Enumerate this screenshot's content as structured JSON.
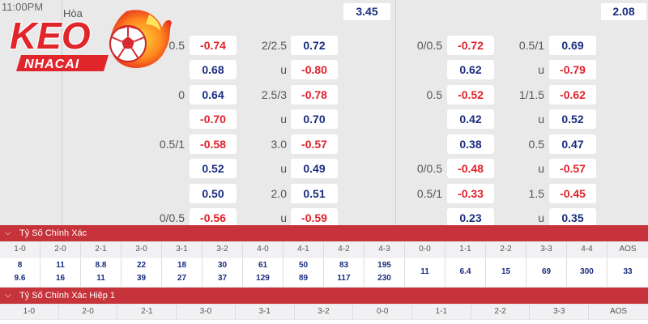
{
  "match": {
    "time": "11:00PM",
    "draw_label": "Hòa",
    "draw_odds_left": "3.45",
    "draw_odds_right": "2.08"
  },
  "logo": {
    "text_top": "KEO",
    "text_bottom": "NHACAI"
  },
  "handicap_left": [
    {
      "label": "0.5",
      "top": "-0.74",
      "bottom": "0.68"
    },
    {
      "label": "0",
      "top": "0.64",
      "bottom": "-0.70"
    },
    {
      "label": "0.5/1",
      "top": "-0.58",
      "bottom": "0.52"
    },
    {
      "label": "0/0.5",
      "top": "0.50",
      "bottom": "-0.56"
    }
  ],
  "overunder_left": [
    {
      "line": "2/2.5",
      "u": "u",
      "top": "0.72",
      "bottom": "-0.80"
    },
    {
      "line": "2.5/3",
      "u": "u",
      "top": "-0.78",
      "bottom": "0.70"
    },
    {
      "line": "3.0",
      "u": "u",
      "top": "-0.57",
      "bottom": "0.49"
    },
    {
      "line": "2.0",
      "u": "u",
      "top": "0.51",
      "bottom": "-0.59"
    }
  ],
  "handicap_right": [
    {
      "label": "0/0.5",
      "top": "-0.72",
      "bottom": "0.62"
    },
    {
      "label": "0.5",
      "top": "-0.52",
      "bottom": "0.42"
    },
    {
      "label": "0/0.5",
      "top": "0.38",
      "bottom": "-0.48"
    },
    {
      "label": "0.5/1",
      "top": "-0.33",
      "bottom": "0.23"
    }
  ],
  "overunder_right": [
    {
      "line": "0.5/1",
      "u": "u",
      "top": "0.69",
      "bottom": "-0.79"
    },
    {
      "line": "1/1.5",
      "u": "u",
      "top": "-0.62",
      "bottom": "0.52"
    },
    {
      "line": "0.5",
      "u": "u",
      "top": "0.47",
      "bottom": "-0.57"
    },
    {
      "line": "1.5",
      "u": "u",
      "top": "-0.45",
      "bottom": "0.35"
    }
  ],
  "correct_score": {
    "title": "Tỷ Số Chính Xác",
    "headers": [
      "1-0",
      "2-0",
      "2-1",
      "3-0",
      "3-1",
      "3-2",
      "4-0",
      "4-1",
      "4-2",
      "4-3",
      "0-0",
      "1-1",
      "2-2",
      "3-3",
      "4-4",
      "AOS"
    ],
    "values": [
      [
        "8",
        "9.6"
      ],
      [
        "11",
        "16"
      ],
      [
        "8.8",
        "11"
      ],
      [
        "22",
        "39"
      ],
      [
        "18",
        "27"
      ],
      [
        "30",
        "37"
      ],
      [
        "61",
        "129"
      ],
      [
        "50",
        "89"
      ],
      [
        "83",
        "117"
      ],
      [
        "195",
        "230"
      ],
      [
        "11"
      ],
      [
        "6.4"
      ],
      [
        "15"
      ],
      [
        "69"
      ],
      [
        "300"
      ],
      [
        "33"
      ]
    ]
  },
  "correct_score_h1": {
    "title": "Tỷ Số Chính Xác Hiệp 1",
    "headers": [
      "1-0",
      "2-0",
      "2-1",
      "3-0",
      "3-1",
      "3-2",
      "0-0",
      "1-1",
      "2-2",
      "3-3",
      "AOS"
    ]
  },
  "colors": {
    "positive": "#1b2d7e",
    "negative": "#e0222b",
    "header_red": "#c6333a",
    "logo_red": "#e0262b"
  }
}
